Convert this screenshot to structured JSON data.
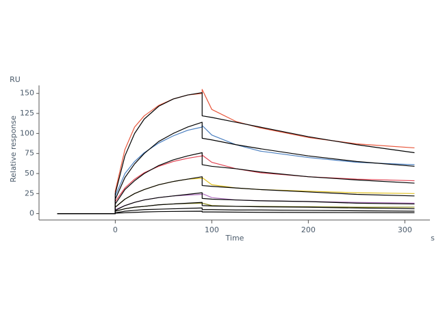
{
  "chart_data": {
    "type": "line",
    "y_label": "Relative response",
    "y_unit": "RU",
    "x_label": "Time",
    "x_unit": "s",
    "x": [
      -60,
      0,
      0,
      10,
      20,
      30,
      45,
      60,
      75,
      90,
      90,
      100,
      125,
      150,
      200,
      250,
      310
    ],
    "xlim": [
      -79,
      326
    ],
    "ylim": [
      -8,
      160
    ],
    "xticks": [
      0,
      100,
      200,
      300
    ],
    "yticks": [
      0,
      25,
      50,
      75,
      100,
      125,
      150
    ],
    "series": [
      {
        "color": "#e8553a",
        "values": [
          0,
          0,
          28,
          80,
          108,
          122,
          135,
          143,
          148,
          150,
          155,
          130,
          115,
          107,
          95,
          87,
          82
        ]
      },
      {
        "color": "#4a7fc0",
        "values": [
          0,
          0,
          22,
          50,
          65,
          76,
          88,
          97,
          104,
          108,
          110,
          98,
          86,
          78,
          70,
          64,
          61
        ]
      },
      {
        "color": "#e04050",
        "values": [
          0,
          0,
          15,
          32,
          43,
          51,
          59,
          65,
          69,
          72,
          73,
          64,
          56,
          51,
          46,
          43,
          41
        ]
      },
      {
        "color": "#e0c020",
        "values": [
          0,
          0,
          8,
          18,
          25,
          30,
          36,
          40,
          43,
          44,
          45,
          36,
          32,
          30,
          28,
          26,
          25
        ]
      },
      {
        "color": "#b070c0",
        "values": [
          0,
          0,
          5,
          10,
          14,
          17,
          20,
          22,
          23,
          24,
          25,
          20,
          17,
          16,
          15,
          14,
          13
        ]
      },
      {
        "color": "#8a8a20",
        "values": [
          0,
          0,
          3,
          6,
          8,
          9,
          11,
          12,
          12.5,
          13,
          13,
          10,
          9,
          9,
          8.5,
          8,
          8
        ]
      },
      {
        "color": "#000000",
        "values": [
          0,
          0,
          25,
          72,
          100,
          118,
          134,
          143,
          148,
          151,
          122,
          120,
          114,
          108,
          96,
          86,
          76
        ]
      },
      {
        "color": "#000000",
        "values": [
          0,
          0,
          18,
          45,
          62,
          75,
          90,
          100,
          108,
          114,
          94,
          92,
          86,
          81,
          72,
          65,
          59
        ]
      },
      {
        "color": "#000000",
        "values": [
          0,
          0,
          12,
          30,
          41,
          50,
          60,
          67,
          72,
          76,
          61,
          59,
          56,
          52,
          46,
          42,
          38
        ]
      },
      {
        "color": "#000000",
        "values": [
          0,
          0,
          8,
          18,
          25,
          30,
          36,
          40,
          43,
          46,
          35,
          34,
          32,
          30,
          27,
          24,
          22
        ]
      },
      {
        "color": "#000000",
        "values": [
          0,
          0,
          4,
          10,
          14,
          17,
          20,
          22,
          24,
          26,
          19,
          18,
          17,
          16,
          15,
          13,
          12
        ]
      },
      {
        "color": "#000000",
        "values": [
          0,
          0,
          3,
          6,
          8,
          9,
          11,
          12,
          13,
          14,
          10,
          9.5,
          9,
          8.5,
          8,
          7,
          6
        ]
      },
      {
        "color": "#000000",
        "values": [
          0,
          0,
          1,
          3,
          4,
          5,
          5.5,
          6,
          6.5,
          7,
          5,
          5,
          4.5,
          4.5,
          4,
          3.5,
          3
        ]
      },
      {
        "color": "#000000",
        "values": [
          0,
          0,
          0.5,
          1,
          1.5,
          2,
          2.5,
          2.7,
          2.9,
          3,
          2,
          2,
          1.8,
          1.6,
          1.4,
          1.2,
          1
        ]
      }
    ]
  }
}
